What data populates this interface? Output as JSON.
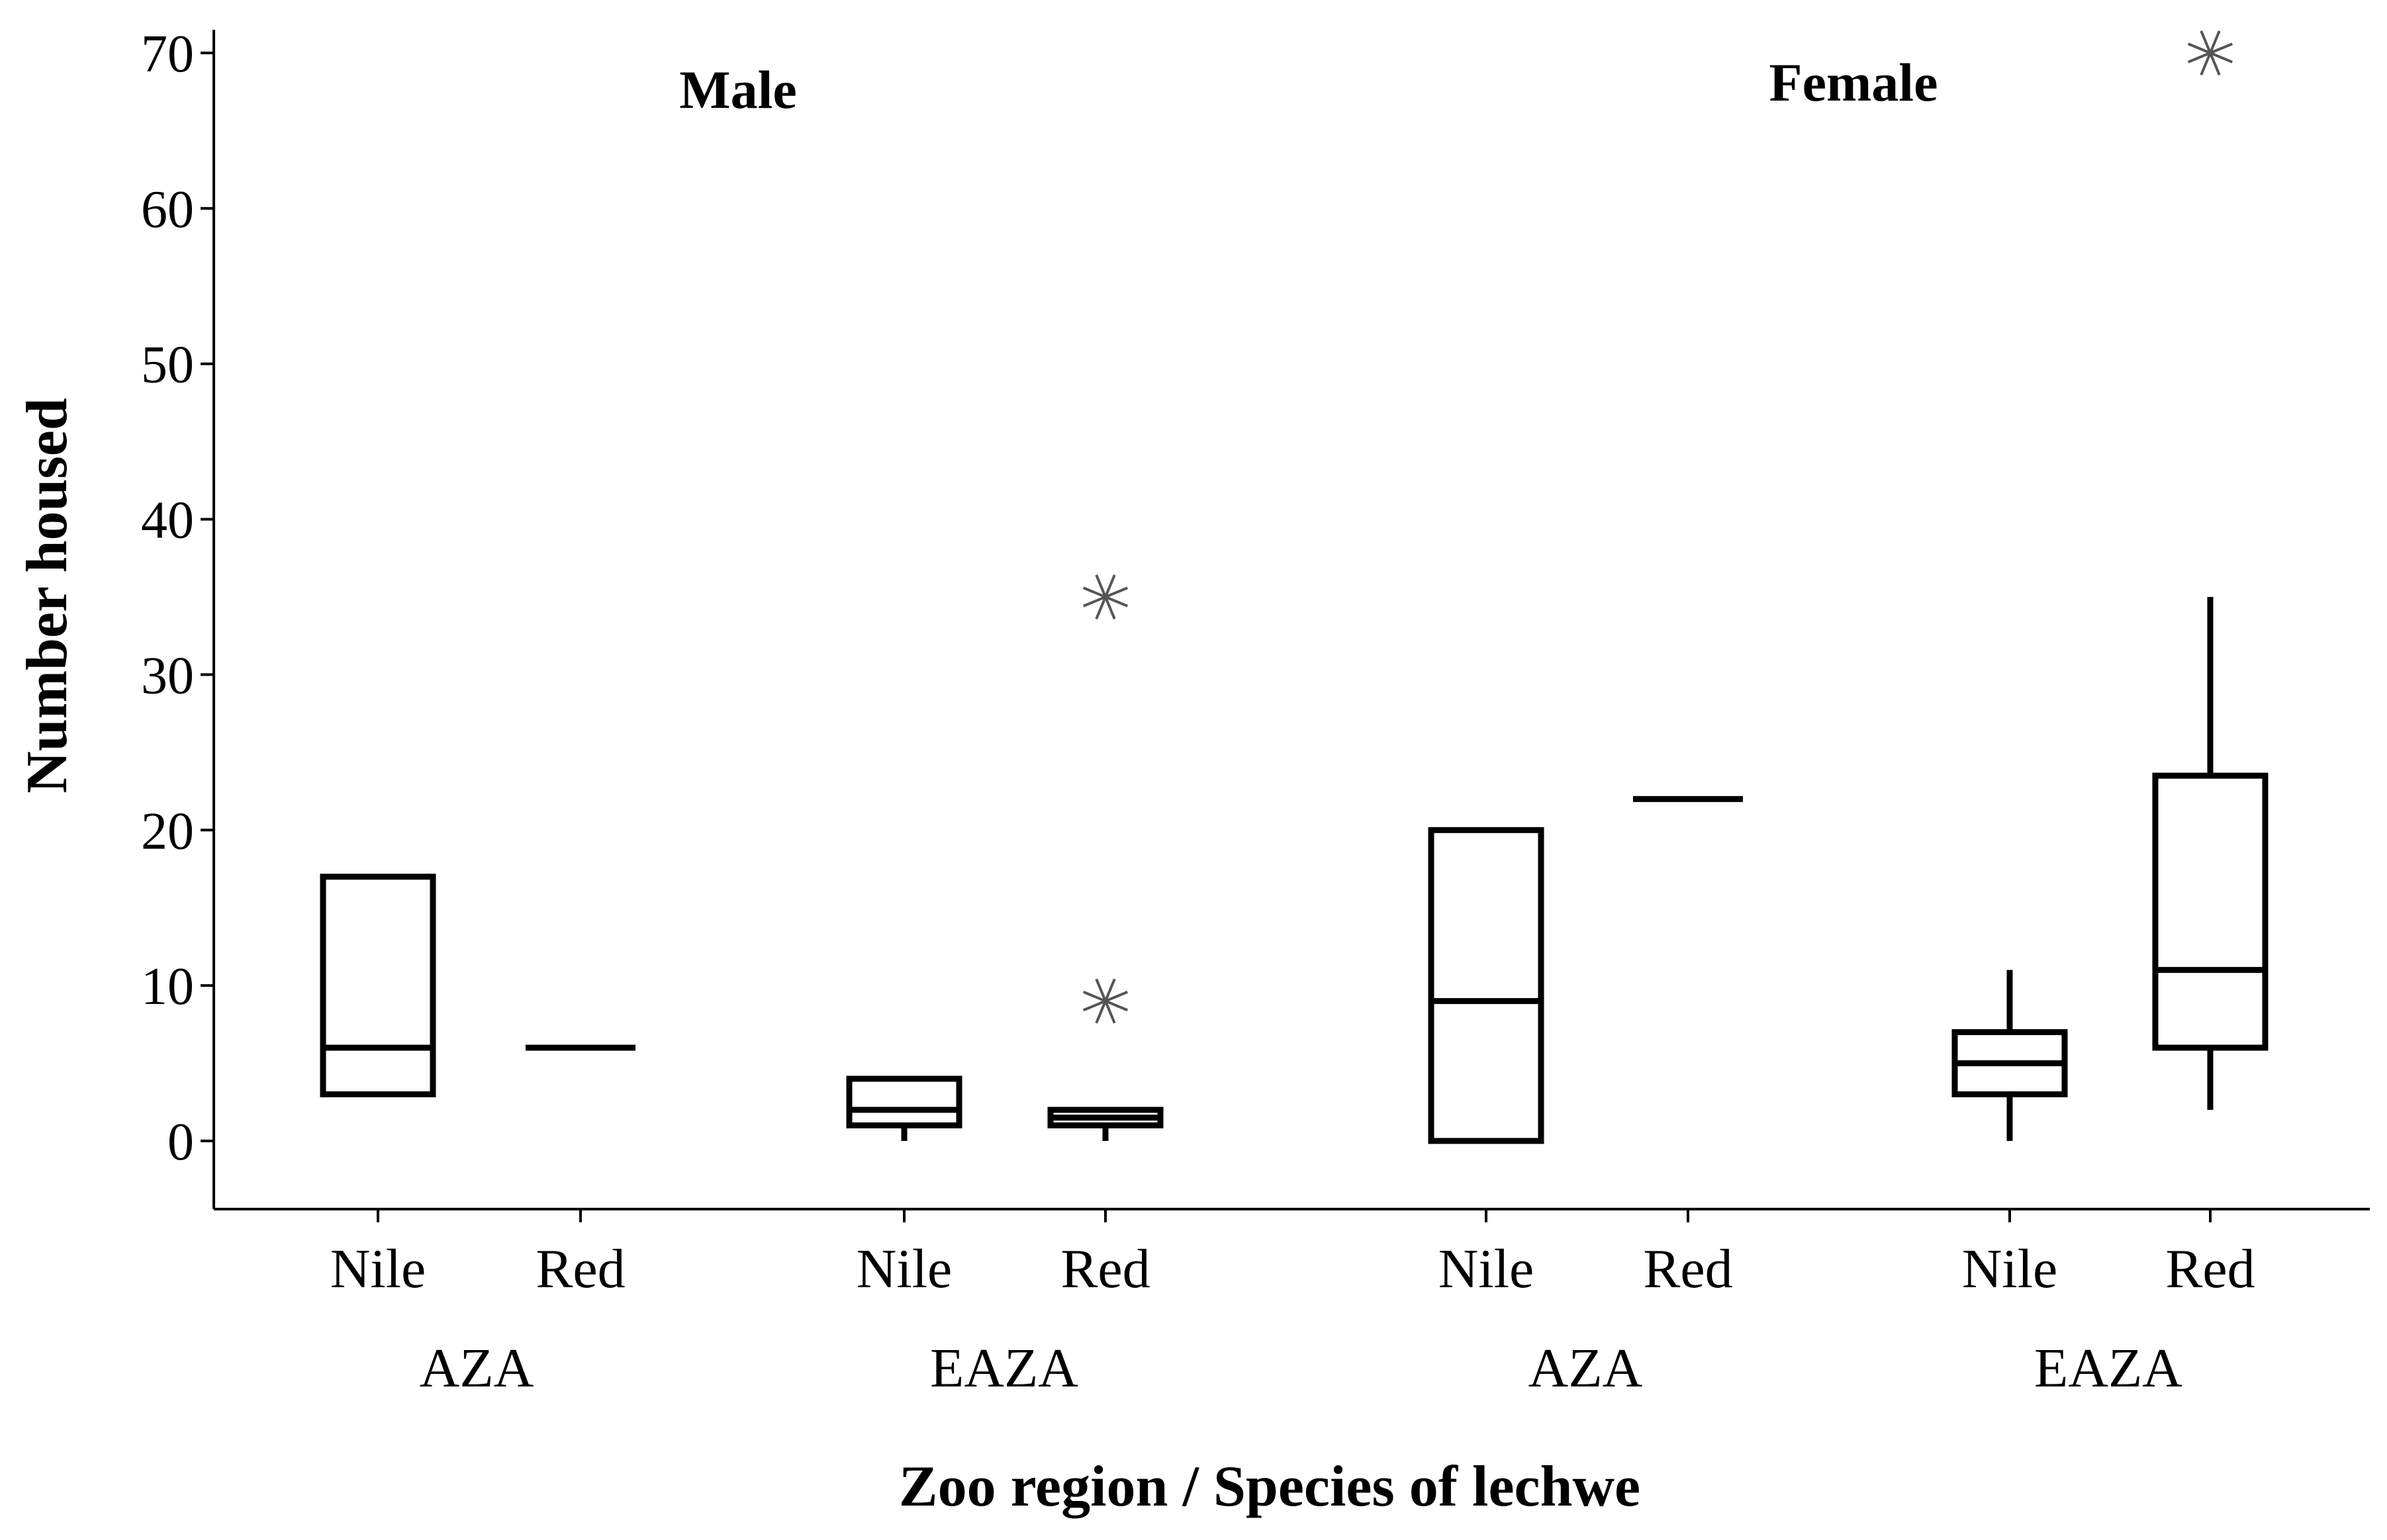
{
  "chart_data": {
    "type": "box",
    "title": "",
    "xlabel": "Zoo region / Species of lechwe",
    "ylabel": "Number housed",
    "ylim": [
      -4.5,
      71.5
    ],
    "yticks": [
      0,
      10,
      20,
      30,
      40,
      50,
      60,
      70
    ],
    "panels": [
      "Male",
      "Female"
    ],
    "colors": {
      "axis": "#000000",
      "box": "#000000",
      "outlier": "#555555"
    },
    "groups": [
      {
        "panel": "Male",
        "region": "AZA",
        "boxes": [
          {
            "species": "Nile",
            "min": 3,
            "q1": 3,
            "median": 6,
            "q3": 17,
            "max": 17,
            "outliers": []
          },
          {
            "species": "Red",
            "min": 6,
            "q1": 6,
            "median": 6,
            "q3": 6,
            "max": 6,
            "outliers": []
          }
        ]
      },
      {
        "panel": "Male",
        "region": "EAZA",
        "boxes": [
          {
            "species": "Nile",
            "min": 0,
            "q1": 1,
            "median": 2,
            "q3": 4,
            "max": 4,
            "outliers": []
          },
          {
            "species": "Red",
            "min": 0,
            "q1": 1,
            "median": 1.5,
            "q3": 2,
            "max": 2,
            "outliers": [
              9,
              35
            ]
          }
        ]
      },
      {
        "panel": "Female",
        "region": "AZA",
        "boxes": [
          {
            "species": "Nile",
            "min": 0,
            "q1": 0,
            "median": 9,
            "q3": 20,
            "max": 20,
            "outliers": []
          },
          {
            "species": "Red",
            "min": 22,
            "q1": 22,
            "median": 22,
            "q3": 22,
            "max": 22,
            "outliers": []
          }
        ]
      },
      {
        "panel": "Female",
        "region": "EAZA",
        "boxes": [
          {
            "species": "Nile",
            "min": 0,
            "q1": 3,
            "median": 5,
            "q3": 7,
            "max": 11,
            "outliers": []
          },
          {
            "species": "Red",
            "min": 2,
            "q1": 6,
            "median": 11,
            "q3": 23.5,
            "max": 35,
            "outliers": [
              70
            ]
          }
        ]
      }
    ]
  }
}
